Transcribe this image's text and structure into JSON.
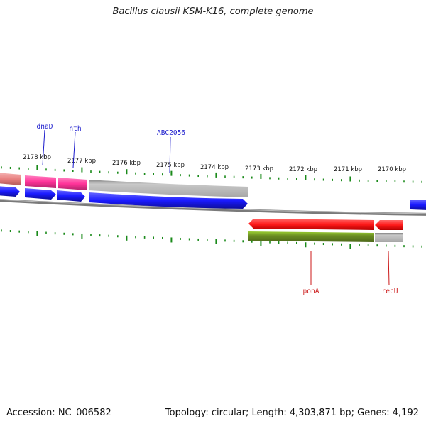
{
  "title": "Bacillus clausii KSM-K16, complete genome",
  "footer": {
    "accession": "Accession: NC_006582",
    "topology": "Topology: circular; Length: 4,303,871 bp; Genes: 4,192"
  },
  "scale": {
    "unit": "kbp",
    "ticks": [
      {
        "label": "2178 kbp"
      },
      {
        "label": "2177 kbp"
      },
      {
        "label": "2176 kbp"
      },
      {
        "label": "2175 kbp"
      },
      {
        "label": "2174 kbp"
      },
      {
        "label": "2173 kbp"
      },
      {
        "label": "2172 kbp"
      },
      {
        "label": "2171 kbp"
      },
      {
        "label": "2170 kbp"
      }
    ]
  },
  "gene_labels": {
    "forward": [
      "dnaD",
      "nth",
      "ABC2056"
    ],
    "reverse": [
      "ponA",
      "recU"
    ]
  },
  "colors": {
    "forward_label": "#1a1acc",
    "reverse_label": "#cc1a1a",
    "cds_forward": "#1a1aff",
    "cds_reverse": "#ff1a1a",
    "rna_pink": "#ff3399",
    "rna_salmon": "#e88080",
    "gene_gray": "#b3b3b3",
    "gene_olive": "#6b8e23",
    "tick": "#1a8a1a",
    "backbone": "#777777"
  }
}
